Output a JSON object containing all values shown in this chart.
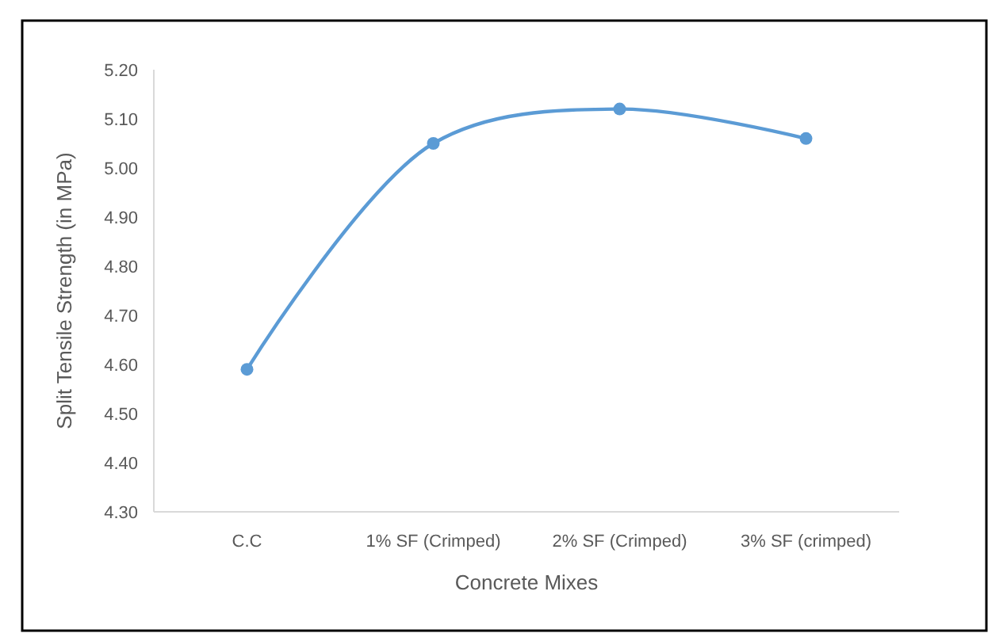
{
  "chart_data": {
    "type": "line",
    "xlabel": "Concrete Mixes",
    "ylabel": "Split Tensile Strength (in MPa)",
    "categories": [
      "C.C",
      "1% SF (Crimped)",
      "2% SF (Crimped)",
      "3% SF (crimped)"
    ],
    "series": [
      {
        "color": "#5b9bd5",
        "values": [
          4.59,
          5.05,
          5.12,
          5.06
        ]
      }
    ],
    "ylim": [
      4.3,
      5.2
    ],
    "yticks": [
      {
        "value": 4.3,
        "label": "4.30"
      },
      {
        "value": 4.4,
        "label": "4.40"
      },
      {
        "value": 4.5,
        "label": "4.50"
      },
      {
        "value": 4.6,
        "label": "4.60"
      },
      {
        "value": 4.7,
        "label": "4.70"
      },
      {
        "value": 4.8,
        "label": "4.80"
      },
      {
        "value": 4.9,
        "label": "4.90"
      },
      {
        "value": 5.0,
        "label": "5.00"
      },
      {
        "value": 5.1,
        "label": "5.10"
      },
      {
        "value": 5.2,
        "label": "5.20"
      }
    ],
    "grid": false,
    "marker": "circle",
    "line_style": "solid"
  }
}
